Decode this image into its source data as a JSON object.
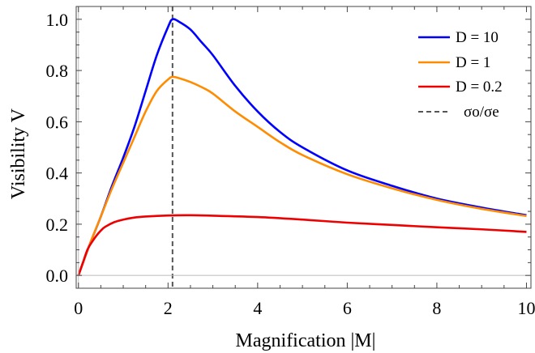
{
  "chart_data": {
    "type": "line",
    "xlabel": "Magnification |M|",
    "ylabel": "Visibility V",
    "xlim": [
      -0.05,
      10.1
    ],
    "ylim": [
      -0.05,
      1.05
    ],
    "xticks": [
      0,
      2,
      4,
      6,
      8,
      10
    ],
    "xtick_labels": [
      "0",
      "2",
      "4",
      "6",
      "8",
      "10"
    ],
    "yticks": [
      0.0,
      0.2,
      0.4,
      0.6,
      0.8,
      1.0
    ],
    "ytick_labels": [
      "0.0",
      "0.2",
      "0.4",
      "0.6",
      "0.8",
      "1.0"
    ],
    "grid": false,
    "legend_position": "top-right",
    "series": [
      {
        "name": "D = 10",
        "color": "#0000ff",
        "x": [
          0,
          0.25,
          0.5,
          0.75,
          1.0,
          1.25,
          1.5,
          1.75,
          2.0,
          2.1,
          2.25,
          2.5,
          2.75,
          3.0,
          3.5,
          4.0,
          4.5,
          5.0,
          6.0,
          7.0,
          8.0,
          9.0,
          10.0
        ],
        "y": [
          0,
          0.12,
          0.23,
          0.35,
          0.46,
          0.58,
          0.72,
          0.86,
          0.97,
          1.0,
          0.99,
          0.96,
          0.91,
          0.86,
          0.74,
          0.64,
          0.56,
          0.5,
          0.41,
          0.35,
          0.3,
          0.265,
          0.235
        ]
      },
      {
        "name": "D = 1",
        "color": "#ff8c00",
        "x": [
          0,
          0.25,
          0.5,
          0.75,
          1.0,
          1.25,
          1.5,
          1.75,
          2.0,
          2.1,
          2.25,
          2.5,
          2.75,
          3.0,
          3.5,
          4.0,
          4.5,
          5.0,
          6.0,
          7.0,
          8.0,
          9.0,
          10.0
        ],
        "y": [
          0,
          0.12,
          0.23,
          0.34,
          0.44,
          0.54,
          0.64,
          0.72,
          0.765,
          0.775,
          0.77,
          0.755,
          0.735,
          0.71,
          0.64,
          0.58,
          0.52,
          0.47,
          0.395,
          0.34,
          0.295,
          0.26,
          0.232
        ]
      },
      {
        "name": "D = 0.2",
        "color": "#ee0000",
        "x": [
          0,
          0.1,
          0.2,
          0.3,
          0.4,
          0.5,
          0.6,
          0.8,
          1.0,
          1.25,
          1.5,
          2.0,
          2.5,
          3.0,
          4.0,
          5.0,
          6.0,
          7.0,
          8.0,
          9.0,
          10.0
        ],
        "y": [
          0,
          0.05,
          0.1,
          0.13,
          0.155,
          0.175,
          0.19,
          0.208,
          0.218,
          0.226,
          0.23,
          0.234,
          0.235,
          0.233,
          0.228,
          0.218,
          0.206,
          0.197,
          0.188,
          0.18,
          0.17
        ]
      }
    ],
    "reference_line": {
      "name": "σo/σe",
      "x": 2.1,
      "color": "#555555",
      "style": "dashed"
    }
  }
}
